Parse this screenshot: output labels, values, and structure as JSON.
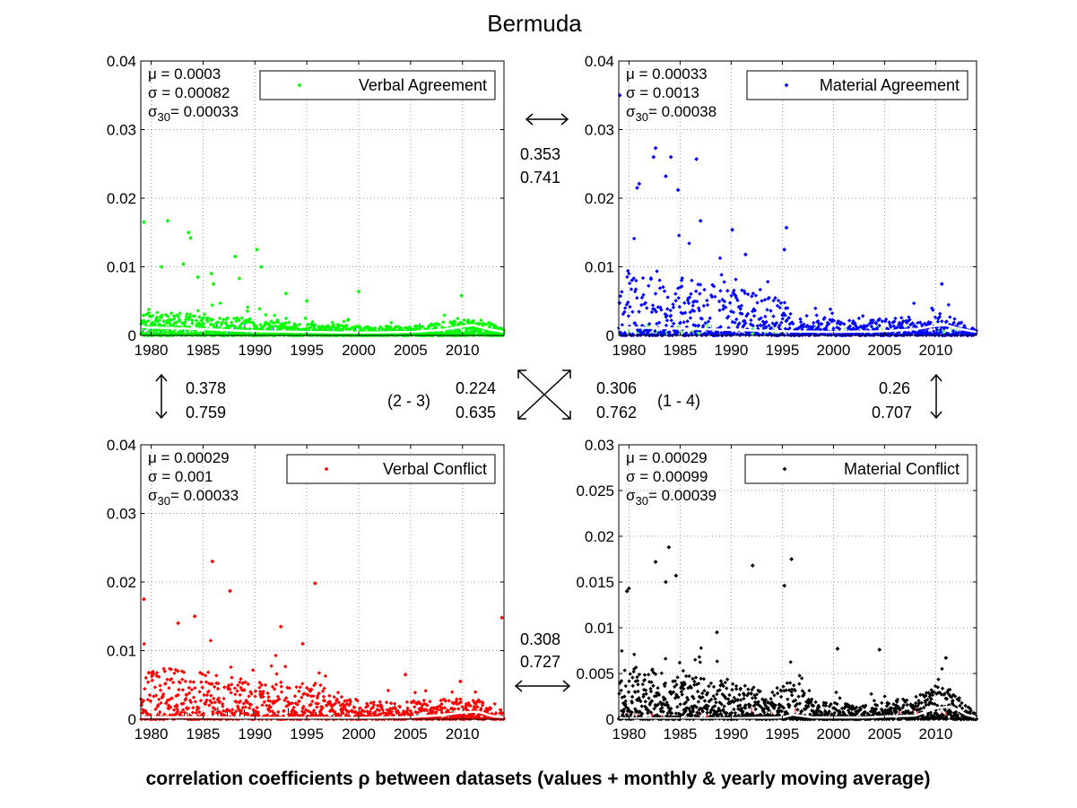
{
  "title": "Bermuda",
  "footer": "correlation coefficients ρ between datasets (values + monthly & yearly moving average)",
  "x_ticks": [
    "1980",
    "1985",
    "1990",
    "1995",
    "2000",
    "2005",
    "2010"
  ],
  "correlations": {
    "top": {
      "a": "0.353",
      "b": "0.741"
    },
    "left": {
      "a": "0.378",
      "b": "0.759"
    },
    "right": {
      "a": "0.26",
      "b": "0.707"
    },
    "bottom": {
      "a": "0.308",
      "b": "0.727"
    },
    "diag_23": {
      "label": "(2 - 3)",
      "a": "0.224",
      "b": "0.635"
    },
    "diag_14": {
      "label": "(1 - 4)",
      "a": "0.306",
      "b": "0.762"
    }
  },
  "chart_data": [
    {
      "type": "scatter",
      "legend": "Verbal Agreement",
      "color": "#00ff00",
      "other_color": "#0000ff",
      "xlim": [
        1979,
        2014
      ],
      "ylim": [
        0,
        0.04
      ],
      "yticks": [
        "0",
        "0.01",
        "0.02",
        "0.03",
        "0.04"
      ],
      "ytick_values": [
        0,
        0.01,
        0.02,
        0.03,
        0.04
      ],
      "stats": {
        "mu": "= 0.0003",
        "sigma": "= 0.00082",
        "sigma30": "= 0.00033"
      },
      "highlights": [
        [
          1979.3,
          0.0165
        ],
        [
          1981.6,
          0.0167
        ],
        [
          1981,
          0.01
        ],
        [
          1983.6,
          0.015
        ],
        [
          1983.8,
          0.0142
        ],
        [
          1983.1,
          0.0104
        ],
        [
          1984.5,
          0.0085
        ],
        [
          1985.8,
          0.009
        ],
        [
          1986,
          0.0075
        ],
        [
          1988.1,
          0.0115
        ],
        [
          1988.5,
          0.0083
        ],
        [
          1990.2,
          0.0125
        ],
        [
          1990.6,
          0.01
        ],
        [
          1993,
          0.0061
        ],
        [
          1995,
          0.005
        ],
        [
          2000,
          0.0064
        ],
        [
          2009.9,
          0.0058
        ]
      ],
      "trend": [
        [
          1979,
          0.0012
        ],
        [
          1985,
          0.0009
        ],
        [
          1990,
          0.0006
        ],
        [
          1995,
          0.0005
        ],
        [
          2000,
          0.0004
        ],
        [
          2005,
          0.0005
        ],
        [
          2008,
          0.0008
        ],
        [
          2010,
          0.0013
        ],
        [
          2011,
          0.0015
        ],
        [
          2012.5,
          0.0009
        ],
        [
          2014,
          0.0005
        ]
      ],
      "profile": [
        [
          1979,
          0.0035
        ],
        [
          1986,
          0.003
        ],
        [
          1991,
          0.0022
        ],
        [
          1996,
          0.0016
        ],
        [
          2001,
          0.0013
        ],
        [
          2006,
          0.0014
        ],
        [
          2010,
          0.0024
        ],
        [
          2012,
          0.0022
        ],
        [
          2014,
          0.0009
        ]
      ],
      "n": 1300,
      "seed": 11
    },
    {
      "type": "scatter",
      "legend": "Material Agreement",
      "color": "#0000ff",
      "other_color": "#00ff00",
      "xlim": [
        1979,
        2014
      ],
      "ylim": [
        0,
        0.04
      ],
      "yticks": [
        "0",
        "0.01",
        "0.02",
        "0.03",
        "0.04"
      ],
      "ytick_values": [
        0,
        0.01,
        0.02,
        0.03,
        0.04
      ],
      "stats": {
        "mu": "= 0.00033",
        "sigma": "= 0.0013",
        "sigma30": "= 0.00038"
      },
      "highlights": [
        [
          1979.1,
          0.035
        ],
        [
          1980.8,
          0.0215
        ],
        [
          1981,
          0.0221
        ],
        [
          1982.4,
          0.026
        ],
        [
          1982.6,
          0.0273
        ],
        [
          1983.6,
          0.0232
        ],
        [
          1984.8,
          0.0212
        ],
        [
          1984.1,
          0.026
        ],
        [
          1986.6,
          0.0257
        ],
        [
          1987,
          0.0167
        ],
        [
          1990.1,
          0.0154
        ],
        [
          1995.4,
          0.0157
        ],
        [
          1995.2,
          0.0125
        ],
        [
          1991.4,
          0.0118
        ],
        [
          2010.6,
          0.0075
        ]
      ],
      "trend": [
        [
          1979,
          0.0012
        ],
        [
          1985,
          0.001
        ],
        [
          1990,
          0.0008
        ],
        [
          1995,
          0.0006
        ],
        [
          2000,
          0.0005
        ],
        [
          2005,
          0.0006
        ],
        [
          2008,
          0.0009
        ],
        [
          2010,
          0.0014
        ],
        [
          2011,
          0.0015
        ],
        [
          2012.5,
          0.0009
        ],
        [
          2014,
          0.0005
        ]
      ],
      "profile": [
        [
          1979,
          0.01
        ],
        [
          1985,
          0.009
        ],
        [
          1990,
          0.007
        ],
        [
          1995,
          0.0055
        ],
        [
          1997,
          0.003
        ],
        [
          2003,
          0.0022
        ],
        [
          2008,
          0.0028
        ],
        [
          2011,
          0.0035
        ],
        [
          2013,
          0.0014
        ],
        [
          2014,
          0.0008
        ]
      ],
      "n": 900,
      "seed": 23
    },
    {
      "type": "scatter",
      "legend": "Verbal Conflict",
      "color": "#ff0000",
      "other_color": "#000000",
      "xlim": [
        1979,
        2014
      ],
      "ylim": [
        0,
        0.04
      ],
      "yticks": [
        "0",
        "0.01",
        "0.02",
        "0.03",
        "0.04"
      ],
      "ytick_values": [
        0,
        0.01,
        0.02,
        0.03,
        0.04
      ],
      "stats": {
        "mu": "= 0.00029",
        "sigma": "= 0.001",
        "sigma30": "= 0.00033"
      },
      "highlights": [
        [
          1979.3,
          0.0175
        ],
        [
          1982.6,
          0.014
        ],
        [
          1984.2,
          0.015
        ],
        [
          1985.9,
          0.023
        ],
        [
          1987.6,
          0.0187
        ],
        [
          1992.5,
          0.0135
        ],
        [
          1995.8,
          0.0198
        ],
        [
          1994.6,
          0.011
        ],
        [
          2013.8,
          0.0148
        ],
        [
          2004.5,
          0.0065
        ],
        [
          2009.8,
          0.0055
        ]
      ],
      "trend": [
        [
          1979,
          0.0003
        ],
        [
          1985,
          0.0003
        ],
        [
          1990,
          0.0002
        ],
        [
          1995,
          0.0002
        ],
        [
          2000,
          0.0002
        ],
        [
          2005,
          0.0003
        ],
        [
          2008,
          0.0006
        ],
        [
          2010,
          0.001
        ],
        [
          2011.5,
          0.0011
        ],
        [
          2013,
          0.0004
        ],
        [
          2014,
          0.0003
        ]
      ],
      "profile": [
        [
          1979,
          0.008
        ],
        [
          1985,
          0.007
        ],
        [
          1990,
          0.0055
        ],
        [
          1996,
          0.0055
        ],
        [
          1998,
          0.003
        ],
        [
          2004,
          0.0025
        ],
        [
          2008,
          0.003
        ],
        [
          2011,
          0.0034
        ],
        [
          2013,
          0.0014
        ],
        [
          2014,
          0.0008
        ]
      ],
      "n": 1100,
      "seed": 37
    },
    {
      "type": "scatter",
      "legend": "Material Conflict",
      "color": "#000000",
      "other_color": "#ff0000",
      "xlim": [
        1979,
        2014
      ],
      "ylim": [
        0,
        0.03
      ],
      "yticks": [
        "0",
        "0.005",
        "0.01",
        "0.015",
        "0.02",
        "0.025",
        "0.03"
      ],
      "ytick_values": [
        0,
        0.005,
        0.01,
        0.015,
        0.02,
        0.025,
        0.03
      ],
      "stats": {
        "mu": "= 0.00029",
        "sigma": "= 0.00099",
        "sigma30": "= 0.00039"
      },
      "highlights": [
        [
          1979.8,
          0.014
        ],
        [
          1980,
          0.0143
        ],
        [
          1982.6,
          0.0172
        ],
        [
          1983.6,
          0.015
        ],
        [
          1983.9,
          0.0188
        ],
        [
          1984.6,
          0.0157
        ],
        [
          1992.1,
          0.0168
        ],
        [
          1995.2,
          0.0146
        ],
        [
          1995.9,
          0.0175
        ],
        [
          2000.4,
          0.0077
        ],
        [
          2004.5,
          0.0076
        ],
        [
          2011,
          0.0067
        ],
        [
          1988.6,
          0.0095
        ]
      ],
      "trend": [
        [
          1979,
          0.0001
        ],
        [
          1985,
          0.0001
        ],
        [
          1990,
          0.0001
        ],
        [
          1995,
          0.0002
        ],
        [
          1996,
          0.0005
        ],
        [
          1998,
          0.0002
        ],
        [
          2003,
          0.0002
        ],
        [
          2008,
          0.0004
        ],
        [
          2010,
          0.0012
        ],
        [
          2011.5,
          0.0014
        ],
        [
          2013,
          0.0005
        ],
        [
          2014,
          0.0002
        ]
      ],
      "profile": [
        [
          1979,
          0.006
        ],
        [
          1985,
          0.005
        ],
        [
          1990,
          0.004
        ],
        [
          1994,
          0.003
        ],
        [
          1996,
          0.005
        ],
        [
          1998,
          0.002
        ],
        [
          2003,
          0.0015
        ],
        [
          2008,
          0.0025
        ],
        [
          2011,
          0.004
        ],
        [
          2013,
          0.0015
        ],
        [
          2014,
          0.0006
        ]
      ],
      "n": 1300,
      "seed": 53
    }
  ]
}
